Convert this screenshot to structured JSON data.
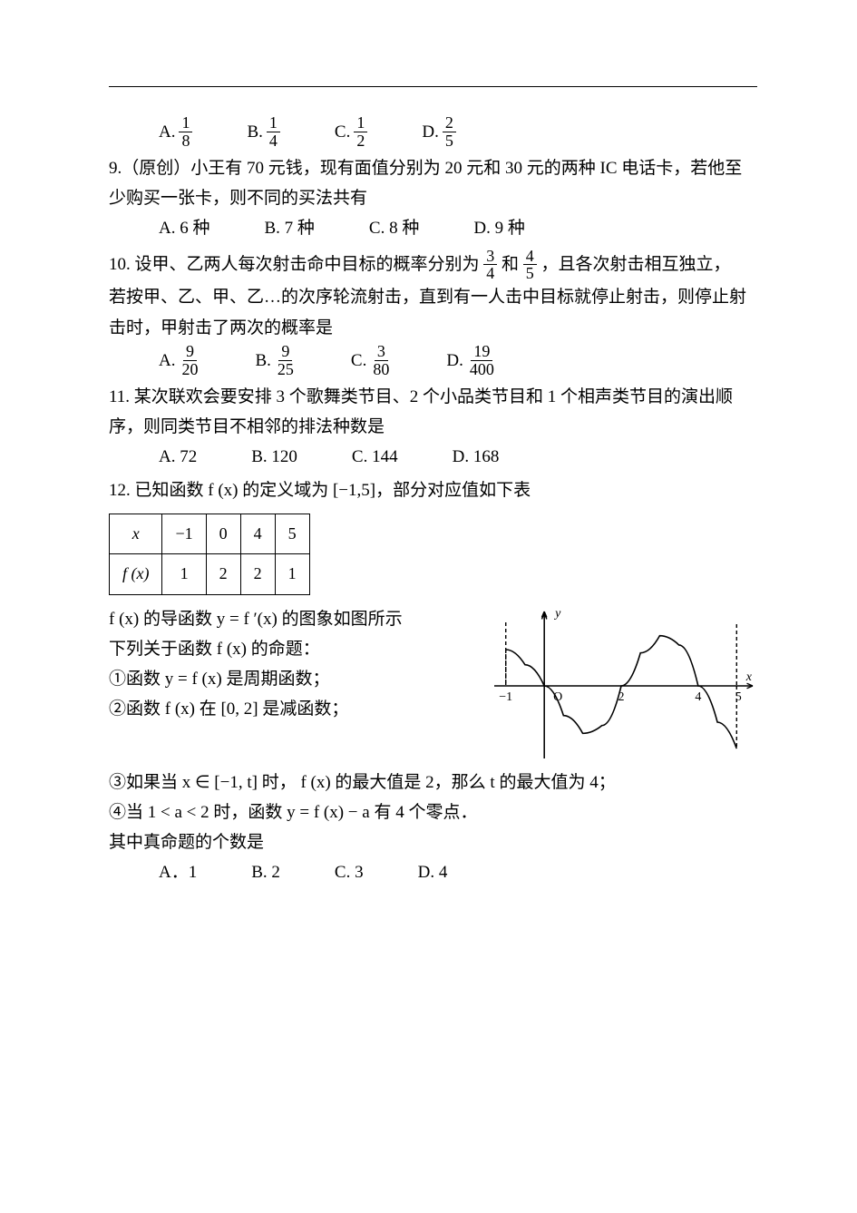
{
  "q8": {
    "choices": [
      {
        "label": "A.",
        "num": "1",
        "den": "8"
      },
      {
        "label": "B.",
        "num": "1",
        "den": "4"
      },
      {
        "label": "C.",
        "num": "1",
        "den": "2"
      },
      {
        "label": "D.",
        "num": "2",
        "den": "5"
      }
    ]
  },
  "q9": {
    "stem": "9.（原创）小王有 70 元钱，现有面值分别为 20 元和 30 元的两种 IC 电话卡，若他至少购买一张卡，则不同的买法共有",
    "choices": [
      {
        "label": "A. 6 种"
      },
      {
        "label": "B. 7 种"
      },
      {
        "label": "C. 8 种"
      },
      {
        "label": "D. 9 种"
      }
    ]
  },
  "q10": {
    "stem_a": "10. 设甲、乙两人每次射击命中目标的概率分别为",
    "frac1": {
      "num": "3",
      "den": "4"
    },
    "mid": "和",
    "frac2": {
      "num": "4",
      "den": "5"
    },
    "stem_b": "，且各次射击相互独立，",
    "stem_c": "若按甲、乙、甲、乙…的次序轮流射击，直到有一人击中目标就停止射击，则停止射击时，甲射击了两次的概率是",
    "choices": [
      {
        "label": "A.",
        "num": "9",
        "den": "20"
      },
      {
        "label": "B.",
        "num": "9",
        "den": "25"
      },
      {
        "label": "C.",
        "num": "3",
        "den": "80"
      },
      {
        "label": "D.",
        "num": "19",
        "den": "400"
      }
    ]
  },
  "q11": {
    "stem": "11. 某次联欢会要安排 3 个歌舞类节目、2 个小品类节目和 1 个相声类节目的演出顺序，则同类节目不相邻的排法种数是",
    "choices": [
      {
        "label": "A. 72"
      },
      {
        "label": "B. 120"
      },
      {
        "label": "C. 144"
      },
      {
        "label": "D. 168"
      }
    ]
  },
  "q12": {
    "stem": "12. 已知函数 f (x) 的定义域为 [−1,5]，部分对应值如下表",
    "table": {
      "row1": [
        "x",
        "−1",
        "0",
        "4",
        "5"
      ],
      "row2": [
        "f (x)",
        "1",
        "2",
        "2",
        "1"
      ]
    },
    "line1": "f (x) 的导函数 y = f ′(x) 的图象如图所示",
    "line2": "下列关于函数 f (x) 的命题：",
    "p1": "①函数 y = f (x) 是周期函数；",
    "p2": "②函数 f (x) 在 [0, 2] 是减函数；",
    "p3": "③如果当 x ∈ [−1, t] 时， f (x) 的最大值是 2，那么 t 的最大值为 4；",
    "p4": "④当 1 < a < 2 时，函数 y = f (x) − a 有 4 个零点．",
    "tail": "其中真命题的个数是",
    "choices": [
      {
        "label": "A．1"
      },
      {
        "label": "B. 2"
      },
      {
        "label": "C. 3"
      },
      {
        "label": "D. 4"
      }
    ],
    "graph": {
      "type": "line",
      "x_axis_label": "x",
      "y_axis_label": "y",
      "xlim": [
        -1.3,
        5.3
      ],
      "ylim": [
        -1.1,
        1.1
      ],
      "ticks_x": [
        -1,
        0,
        2,
        4,
        5
      ],
      "tick_labels_x": [
        "−1",
        "O",
        "2",
        "4",
        "5"
      ],
      "curve_color": "#000000",
      "axis_color": "#000000",
      "dash_color": "#000000",
      "background_color": "#ffffff",
      "line_width": 1.6,
      "curve_points": [
        [
          -1.0,
          0.55
        ],
        [
          -0.5,
          0.32
        ],
        [
          0.0,
          0.0
        ],
        [
          0.5,
          -0.45
        ],
        [
          1.0,
          -0.72
        ],
        [
          1.5,
          -0.6
        ],
        [
          2.0,
          0.0
        ],
        [
          2.5,
          0.5
        ],
        [
          3.0,
          0.76
        ],
        [
          3.5,
          0.62
        ],
        [
          4.0,
          0.0
        ],
        [
          4.5,
          -0.55
        ],
        [
          5.0,
          -0.95
        ]
      ]
    }
  }
}
